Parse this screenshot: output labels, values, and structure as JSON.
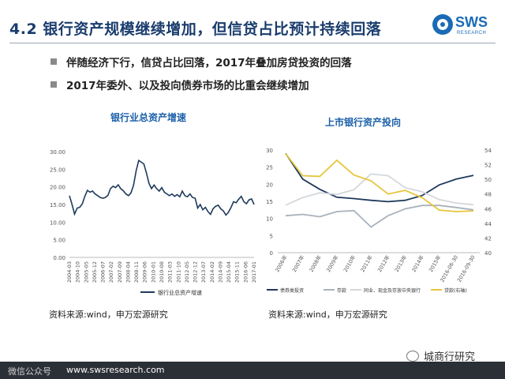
{
  "header": {
    "title": "4.2 银行资产规模继续增加，但信贷占比预计持续回落",
    "logo_text": "SWS",
    "logo_sub": "RESEARCH"
  },
  "bullets": [
    "伴随经济下行，信贷占比回落，2017年叠加房贷投资的回落",
    "2017年委外、以及投向债券市场的比重会继续增加"
  ],
  "footer": {
    "left_text": "微信公众号",
    "url": "www.swsresearch.com",
    "watermark": "城商行研究"
  },
  "chart_data": [
    {
      "type": "line",
      "title": "银行业总资产增速",
      "source": "资料来源:wind，申万宏源研究",
      "x_tick_labels": [
        "2004-03",
        "2004-10",
        "2005-05",
        "2005-12",
        "2006-07",
        "2007-02",
        "2007-09",
        "2008-04",
        "2008-11",
        "2009-06",
        "2010-01",
        "2010-08",
        "2011-03",
        "2011-10",
        "2012-05",
        "2012-12",
        "2013-07",
        "2014-02",
        "2014-09",
        "2015-04",
        "2015-11",
        "2016-06",
        "2017-01"
      ],
      "y_tick_labels": [
        "0.00",
        "5.00",
        "10.00",
        "15.00",
        "20.00",
        "25.00",
        "30.00"
      ],
      "ylim": [
        0,
        30
      ],
      "series": [
        {
          "name": "银行业总资产增速",
          "color": "#1f3a5c",
          "values": [
            17.5,
            15.0,
            12.3,
            14.0,
            14.2,
            15.2,
            17.3,
            19.0,
            18.5,
            18.8,
            18.0,
            17.5,
            17.0,
            16.8,
            17.0,
            17.6,
            19.5,
            20.2,
            19.8,
            20.6,
            19.5,
            18.9,
            18.0,
            17.5,
            18.3,
            20.5,
            24.5,
            27.5,
            27.0,
            26.5,
            24.0,
            21.0,
            19.5,
            20.5,
            19.5,
            18.8,
            19.8,
            18.5,
            18.0,
            17.5,
            18.0,
            17.3,
            17.8,
            17.2,
            18.8,
            17.5,
            17.2,
            18.0,
            17.0,
            16.8,
            14.0,
            15.0,
            13.5,
            14.2,
            13.0,
            12.2,
            13.8,
            14.5,
            14.8,
            13.8,
            13.2,
            12.0,
            12.8,
            14.2,
            15.8,
            15.5,
            16.5,
            17.3,
            15.8,
            15.2,
            16.3,
            16.6,
            15.0
          ]
        }
      ]
    },
    {
      "type": "line",
      "title": "上市银行资产投向",
      "source": "资料来源:wind，申万宏源研究",
      "categories": [
        "2006年",
        "2007年",
        "2008年",
        "2009年",
        "2010年",
        "2011年",
        "2012年",
        "2013年",
        "2014年",
        "2015年",
        "2016-06-30",
        "2016-09-30"
      ],
      "y_left_ticks": [
        "0",
        "5",
        "10",
        "15",
        "20",
        "25",
        "30"
      ],
      "y_right_ticks": [
        "40",
        "42",
        "44",
        "46",
        "48",
        "50",
        "52",
        "54"
      ],
      "ylim_left": [
        0,
        30
      ],
      "ylim_right": [
        40,
        54
      ],
      "series": [
        {
          "name": "债券类投资",
          "axis": "left",
          "color": "#1f3a5c",
          "values": [
            29.0,
            21.5,
            18.5,
            16.2,
            15.8,
            15.3,
            14.9,
            15.3,
            16.7,
            19.8,
            21.5,
            22.6
          ]
        },
        {
          "name": "存款",
          "axis": "left",
          "color": "#a9b2bc",
          "values": [
            10.8,
            11.2,
            10.5,
            12.0,
            12.3,
            7.5,
            10.8,
            12.8,
            13.8,
            13.8,
            13.2,
            12.5
          ]
        },
        {
          "name": "同业、现金及存放中央银行",
          "axis": "left",
          "color": "#d4d8dc",
          "values": [
            13.9,
            16.1,
            17.5,
            17.0,
            18.4,
            23.0,
            22.5,
            19.0,
            17.8,
            15.5,
            14.5,
            14.0
          ]
        },
        {
          "name": "贷款(右轴)",
          "axis": "right",
          "color": "#e6c63c",
          "values": [
            53.5,
            50.5,
            50.4,
            52.6,
            50.6,
            49.8,
            48.0,
            48.5,
            47.5,
            45.8,
            45.6,
            45.7
          ]
        }
      ]
    }
  ]
}
